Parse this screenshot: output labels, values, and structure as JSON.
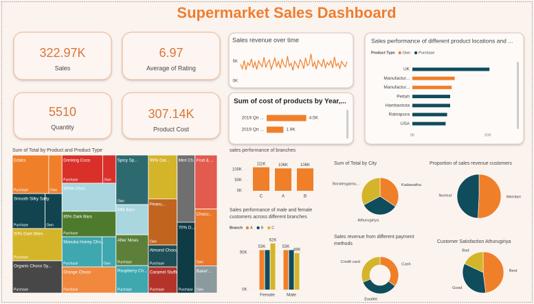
{
  "header": {
    "title": "Supermarket Sales Dashboard"
  },
  "kpis": [
    {
      "value": "322.97K",
      "label": "Sales"
    },
    {
      "value": "6.97",
      "label": "Average of Rating"
    },
    {
      "value": "5510",
      "label": "Quantity"
    },
    {
      "value": "307.14K",
      "label": "Product Cost"
    }
  ],
  "chart_data": [
    {
      "type": "line",
      "title": "Sales revenue over time",
      "color": "#f07f2a",
      "values": [
        4200,
        3100,
        5200,
        2800,
        4600,
        3900,
        5600,
        3300,
        4800,
        2900,
        5100,
        4300,
        3600,
        6000,
        3400,
        4700,
        5300,
        3000,
        4400,
        5800,
        3700,
        4900,
        3200,
        5500,
        4100,
        3500,
        6300,
        3800,
        4500,
        2700,
        5000,
        4200,
        3300,
        5400,
        4600,
        3100,
        5900,
        3900,
        4300,
        6900,
        3600,
        4800,
        3000,
        5200,
        4400,
        3700,
        5600,
        3400,
        4700,
        4000,
        5100,
        3300,
        6100,
        3800,
        4500,
        3200,
        5000,
        4200,
        3600,
        4900
      ],
      "ylim": [
        0,
        8000
      ],
      "yticks": [
        {
          "value": 0,
          "label": "0K"
        },
        {
          "value": 5000,
          "label": "5K"
        }
      ]
    },
    {
      "type": "bar",
      "orientation": "horizontal",
      "title": "Sum of cost of products by Year,...",
      "color": "#f07f2a",
      "categories": [
        "2019 Qtr ...",
        "2019 Qtr ..."
      ],
      "values": [
        4500,
        1900
      ],
      "value_labels": [
        "4.5K",
        "1.9K"
      ],
      "xlim": [
        0,
        5000
      ]
    },
    {
      "type": "bar",
      "orientation": "horizontal",
      "title": "Sales performance of different product locations and ...",
      "legend_title": "Product Type",
      "categories": [
        "UK",
        "Manufactur...",
        "Manufactur...",
        "Pettah",
        "Hambantota",
        "Ratnapura",
        "USA"
      ],
      "series": [
        {
          "name": "Own",
          "color": "#f07f2a",
          "values": [
            null,
            28000,
            26000,
            null,
            null,
            null,
            null
          ]
        },
        {
          "name": "Purchase",
          "color": "#0f4c5c",
          "values": [
            51000,
            null,
            null,
            25000,
            25000,
            23000,
            22000
          ]
        }
      ],
      "xlim": [
        0,
        55000
      ],
      "xticks": [
        {
          "value": 0,
          "label": "0K"
        },
        {
          "value": 50000,
          "label": "50K"
        }
      ]
    },
    {
      "type": "treemap",
      "title": "Sum of Total by Product and Product Type",
      "tiles": [
        {
          "name": "Edairs",
          "color": "#f07f2a",
          "parts": [
            {
              "type": "Purchase",
              "value": 15300
            },
            {
              "type": "Own",
              "value": 5600
            }
          ]
        },
        {
          "name": "Smooth Silky Salty",
          "color": "#12444f",
          "parts": [
            {
              "type": "Purchase",
              "value": 12500
            },
            {
              "type": "Own",
              "value": 6500
            }
          ]
        },
        {
          "name": "50% Dark Bites",
          "color": "#d4b52a",
          "parts": [
            {
              "type": "Purchase",
              "value": 17500
            }
          ]
        },
        {
          "name": "Organic Choco Sy...",
          "color": "#474747",
          "parts": [
            {
              "type": "Purchase",
              "value": 17500
            }
          ]
        },
        {
          "name": "Drinking Coco",
          "color": "#d9302a",
          "parts": [
            {
              "type": "Purchase",
              "value": 12500
            },
            {
              "type": "Own",
              "value": 4100
            }
          ]
        },
        {
          "name": "White Choc",
          "color": "#a9d6df",
          "value": 16600
        },
        {
          "name": "85% Dark Bars",
          "color": "#4e7a2d",
          "parts": [
            {
              "type": "Purchase",
              "value": 15000
            }
          ]
        },
        {
          "name": "Manuka Honey Cho...",
          "color": "#3fa7b0",
          "parts": [
            {
              "type": "Purchase",
              "value": 13200
            },
            {
              "type": "Own",
              "value": 4600
            }
          ]
        },
        {
          "name": "Orange Choco",
          "color": "#f0883d",
          "parts": [
            {
              "type": "Purchase",
              "value": 15400
            }
          ]
        },
        {
          "name": "Spicy Sp...",
          "color": "#2d6a6f",
          "parts": [
            {
              "type": "Own",
              "value": 17500
            }
          ]
        },
        {
          "name": "Milk Bars",
          "color": "#a9d6df",
          "value": 10700
        },
        {
          "name": "After Nines",
          "color": "#5c7f3a",
          "parts": [
            {
              "type": "Purchase",
              "value": 10900
            }
          ]
        },
        {
          "name": "Raspberry Ch...",
          "color": "#3fa7b0",
          "parts": [
            {
              "type": "Purchase",
              "value": 9700
            }
          ]
        },
        {
          "name": "99% Dar...",
          "color": "#d4b52a",
          "value": 13800
        },
        {
          "name": "Peanu...",
          "color": "#c0641f",
          "parts": [
            {
              "type": "Own",
              "value": 14500
            }
          ]
        },
        {
          "name": "Almond Choco",
          "color": "#1d4d55",
          "parts": [
            {
              "type": "Purchase",
              "value": 6900
            }
          ]
        },
        {
          "name": "Caramel Stuffed ...",
          "color": "#b5342a",
          "parts": [
            {
              "type": "Purchase",
              "value": 8200
            }
          ]
        },
        {
          "name": "Mint Ch...",
          "color": "#6f6f6f",
          "value": 13100
        },
        {
          "name": "70% D...",
          "color": "#0f3b45",
          "parts": [
            {
              "type": "Purchase",
              "value": 13800
            }
          ]
        },
        {
          "name": "Fruit & ...",
          "color": "#e35a4f",
          "value": 13100
        },
        {
          "name": "Choco...",
          "color": "#e8782c",
          "parts": [
            {
              "type": "Own",
              "value": 13800
            }
          ]
        },
        {
          "name": "Baker'...",
          "color": "#8b9a9c",
          "parts": [
            {
              "type": "Own",
              "value": 6600
            }
          ]
        }
      ]
    },
    {
      "type": "bar",
      "title": "sales performance of branches",
      "color": "#f07f2a",
      "categories": [
        "C",
        "A",
        "B"
      ],
      "values": [
        111000,
        106000,
        106000
      ],
      "value_labels": [
        "111K",
        "106K",
        "106K"
      ],
      "ylim": [
        0,
        120000
      ],
      "yticks": [
        {
          "value": 0,
          "label": "0K"
        },
        {
          "value": 50000,
          "label": "50K"
        },
        {
          "value": 100000,
          "label": "100K"
        }
      ]
    },
    {
      "type": "bar",
      "title": "Sales performance of male and female customers across different branches",
      "legend_title": "Branch",
      "categories": [
        "Female",
        "Male"
      ],
      "series": [
        {
          "name": "A",
          "color": "#f07f2a",
          "values": [
            53000,
            53000
          ],
          "value_labels": [
            "53K",
            "53K"
          ]
        },
        {
          "name": "B",
          "color": "#0f4c5c",
          "values": [
            53000,
            53000
          ],
          "value_labels": [
            null,
            null
          ]
        },
        {
          "name": "C",
          "color": "#d4b52a",
          "values": [
            62000,
            49000
          ],
          "value_labels": [
            "62K",
            "49K"
          ]
        }
      ],
      "ylim": [
        0,
        70000
      ],
      "yticks": [
        {
          "value": 0,
          "label": "0K"
        },
        {
          "value": 50000,
          "label": "50K"
        }
      ]
    },
    {
      "type": "pie",
      "title": "Sum of Total by City",
      "categories": [
        "Kadawatha",
        "Athurugiriya",
        "Boralesgamu..."
      ],
      "values": [
        111000,
        106000,
        106000
      ],
      "colors": [
        "#f07f2a",
        "#0f4c5c",
        "#d4b52a"
      ]
    },
    {
      "type": "pie",
      "title": "Proportion of sales revenue customers",
      "categories": [
        "Member",
        "Normal"
      ],
      "values": [
        164000,
        159000
      ],
      "colors": [
        "#f07f2a",
        "#0f4c5c"
      ]
    },
    {
      "type": "donut",
      "title": "Sales revenue from different payment methods",
      "categories": [
        "Cash",
        "Ewallet",
        "Credit card"
      ],
      "values": [
        113000,
        109000,
        101000
      ],
      "colors": [
        "#f07f2a",
        "#0f4c5c",
        "#d4b52a"
      ]
    },
    {
      "type": "pie",
      "title": "Customer Satisfaction Athurugiriya",
      "categories": [
        "Best",
        "Good",
        "Bad"
      ],
      "values": [
        48,
        34,
        18
      ],
      "colors": [
        "#f07f2a",
        "#0f4c5c",
        "#d4b52a"
      ]
    }
  ]
}
